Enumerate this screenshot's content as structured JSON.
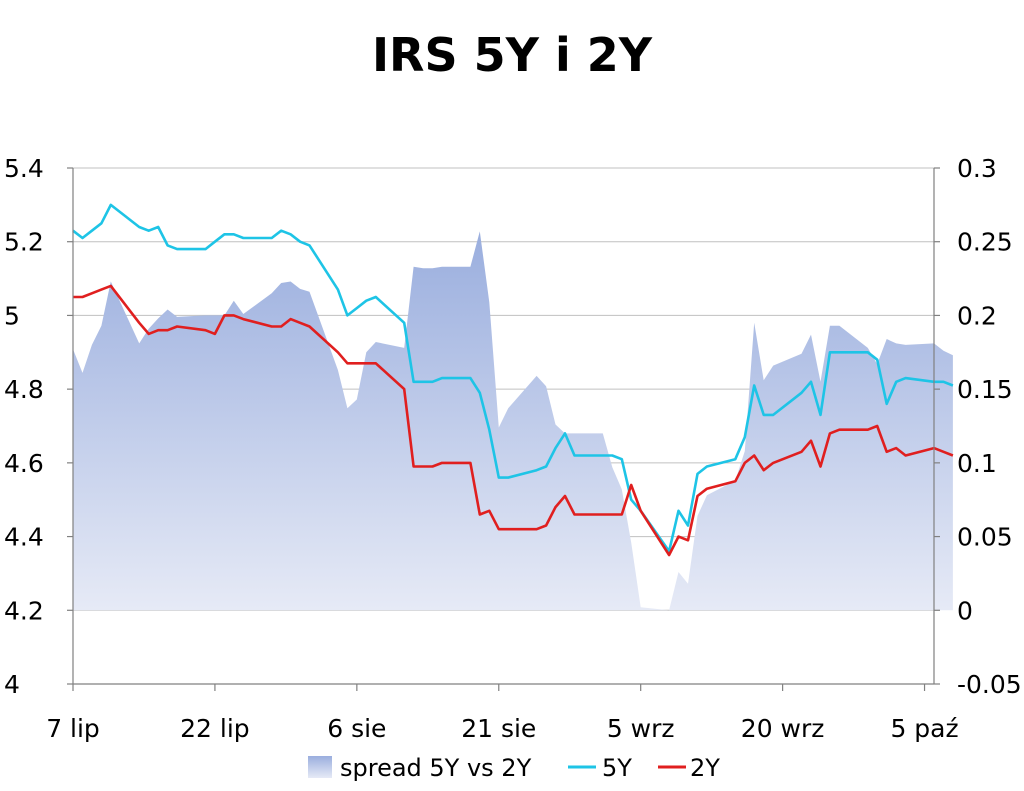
{
  "chart_data": {
    "type": "line",
    "title": "IRS 5Y i 2Y",
    "x_dates": [
      "2008-07-07",
      "2008-07-08",
      "2008-07-09",
      "2008-07-10",
      "2008-07-11",
      "2008-07-14",
      "2008-07-15",
      "2008-07-16",
      "2008-07-17",
      "2008-07-18",
      "2008-07-21",
      "2008-07-22",
      "2008-07-23",
      "2008-07-24",
      "2008-07-25",
      "2008-07-28",
      "2008-07-29",
      "2008-07-30",
      "2008-07-31",
      "2008-08-01",
      "2008-08-04",
      "2008-08-05",
      "2008-08-06",
      "2008-08-07",
      "2008-08-08",
      "2008-08-11",
      "2008-08-12",
      "2008-08-13",
      "2008-08-14",
      "2008-08-15",
      "2008-08-18",
      "2008-08-19",
      "2008-08-20",
      "2008-08-21",
      "2008-08-22",
      "2008-08-25",
      "2008-08-26",
      "2008-08-27",
      "2008-08-28",
      "2008-08-29",
      "2008-09-01",
      "2008-09-02",
      "2008-09-03",
      "2008-09-04",
      "2008-09-05",
      "2008-09-08",
      "2008-09-09",
      "2008-09-10",
      "2008-09-11",
      "2008-09-12",
      "2008-09-15",
      "2008-09-16",
      "2008-09-17",
      "2008-09-18",
      "2008-09-19",
      "2008-09-22",
      "2008-09-23",
      "2008-09-24",
      "2008-09-25",
      "2008-09-26",
      "2008-09-29",
      "2008-09-30",
      "2008-10-01",
      "2008-10-02",
      "2008-10-03",
      "2008-10-06",
      "2008-10-07",
      "2008-10-08"
    ],
    "x_tick_labels": [
      "7 lip",
      "22 lip",
      "6 sie",
      "21 sie",
      "5 wrz",
      "20 wrz",
      "5 paź"
    ],
    "x_tick_dates": [
      "2008-07-07",
      "2008-07-22",
      "2008-08-06",
      "2008-08-21",
      "2008-09-05",
      "2008-09-20",
      "2008-10-05"
    ],
    "y_left": {
      "min": 4,
      "max": 5.4,
      "ticks": [
        4,
        4.2,
        4.4,
        4.6,
        4.8,
        5,
        5.2,
        5.4
      ]
    },
    "y_right": {
      "min": -0.05,
      "max": 0.3,
      "ticks": [
        -0.05,
        0,
        0.05,
        0.1,
        0.15,
        0.2,
        0.25,
        0.3
      ]
    },
    "grid": "horizontal",
    "legend_position": "bottom",
    "series": [
      {
        "name": "spread 5Y vs 2Y",
        "type": "area",
        "axis": "right",
        "color": "#9aaede",
        "values": [
          0.177,
          0.161,
          0.18,
          0.193,
          0.223,
          0.181,
          0.191,
          0.198,
          0.204,
          0.199,
          0.2,
          0.2,
          0.2,
          0.21,
          0.201,
          0.215,
          0.222,
          0.223,
          0.218,
          0.216,
          0.163,
          0.137,
          0.143,
          0.175,
          0.182,
          0.178,
          0.233,
          0.232,
          0.232,
          0.233,
          0.233,
          0.257,
          0.209,
          0.124,
          0.137,
          0.159,
          0.152,
          0.126,
          0.12,
          0.12,
          0.12,
          0.097,
          0.082,
          0.046,
          0.002,
          0.0,
          0.026,
          0.018,
          0.064,
          0.078,
          0.088,
          0.108,
          0.195,
          0.156,
          0.166,
          0.174,
          0.187,
          0.155,
          0.193,
          0.193,
          0.178,
          0.167,
          0.184,
          0.181,
          0.18,
          0.181,
          0.176,
          0.173
        ]
      },
      {
        "name": "5Y",
        "type": "line",
        "axis": "left",
        "color": "#1ec4e6",
        "values": [
          5.23,
          5.21,
          5.23,
          5.25,
          5.3,
          5.24,
          5.23,
          5.24,
          5.19,
          5.18,
          5.18,
          5.2,
          5.22,
          5.22,
          5.21,
          5.21,
          5.23,
          5.22,
          5.2,
          5.19,
          5.07,
          5.0,
          5.02,
          5.04,
          5.05,
          4.98,
          4.82,
          4.82,
          4.82,
          4.83,
          4.83,
          4.79,
          4.69,
          4.56,
          4.56,
          4.58,
          4.59,
          4.64,
          4.68,
          4.62,
          4.62,
          4.62,
          4.61,
          4.5,
          4.47,
          4.36,
          4.47,
          4.43,
          4.57,
          4.59,
          4.61,
          4.67,
          4.81,
          4.73,
          4.73,
          4.79,
          4.82,
          4.73,
          4.9,
          4.9,
          4.9,
          4.88,
          4.76,
          4.82,
          4.83,
          4.82,
          4.82,
          4.81
        ]
      },
      {
        "name": "2Y",
        "type": "line",
        "axis": "left",
        "color": "#e01f1f",
        "values": [
          5.05,
          5.05,
          5.06,
          5.07,
          5.08,
          4.98,
          4.95,
          4.96,
          4.96,
          4.97,
          4.96,
          4.95,
          5.0,
          5.0,
          4.99,
          4.97,
          4.97,
          4.99,
          4.98,
          4.97,
          4.9,
          4.87,
          4.87,
          4.87,
          4.87,
          4.8,
          4.59,
          4.59,
          4.59,
          4.6,
          4.6,
          4.46,
          4.47,
          4.42,
          4.42,
          4.42,
          4.43,
          4.48,
          4.51,
          4.46,
          4.46,
          4.46,
          4.46,
          4.54,
          4.47,
          4.35,
          4.4,
          4.39,
          4.51,
          4.53,
          4.55,
          4.6,
          4.62,
          4.58,
          4.6,
          4.63,
          4.66,
          4.59,
          4.68,
          4.69,
          4.69,
          4.7,
          4.63,
          4.64,
          4.62,
          4.64,
          4.63,
          4.62
        ]
      }
    ]
  }
}
